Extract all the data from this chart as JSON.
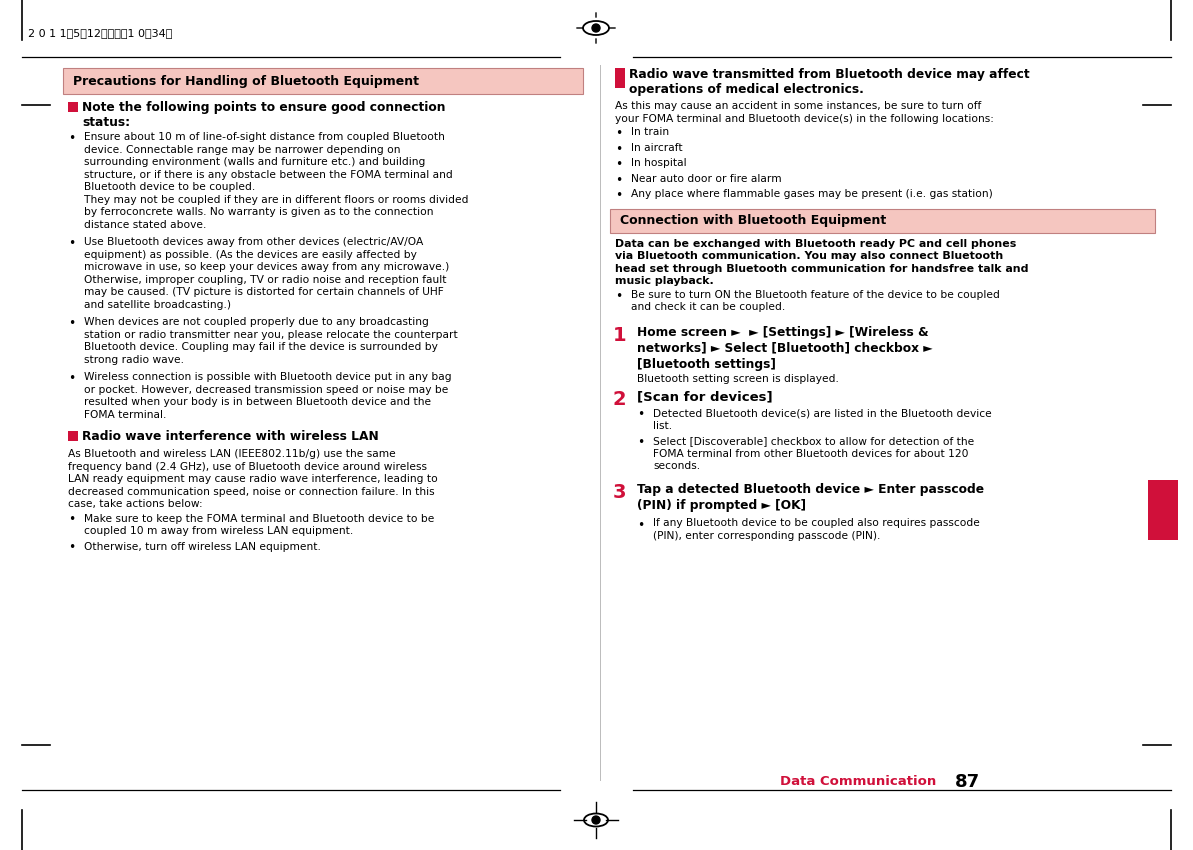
{
  "page_bg": "#ffffff",
  "header_text": "2 0 1 1年5月12日　午後1 0時34分",
  "footer_text": "Data Communication",
  "footer_number": "87",
  "section_header_bg": "#f5c6c0",
  "red_color": "#d0103a",
  "black": "#000000",
  "left_section_header": "Precautions for Handling of Bluetooth Equipment",
  "connection_section_header": "Connection with Bluetooth Equipment"
}
